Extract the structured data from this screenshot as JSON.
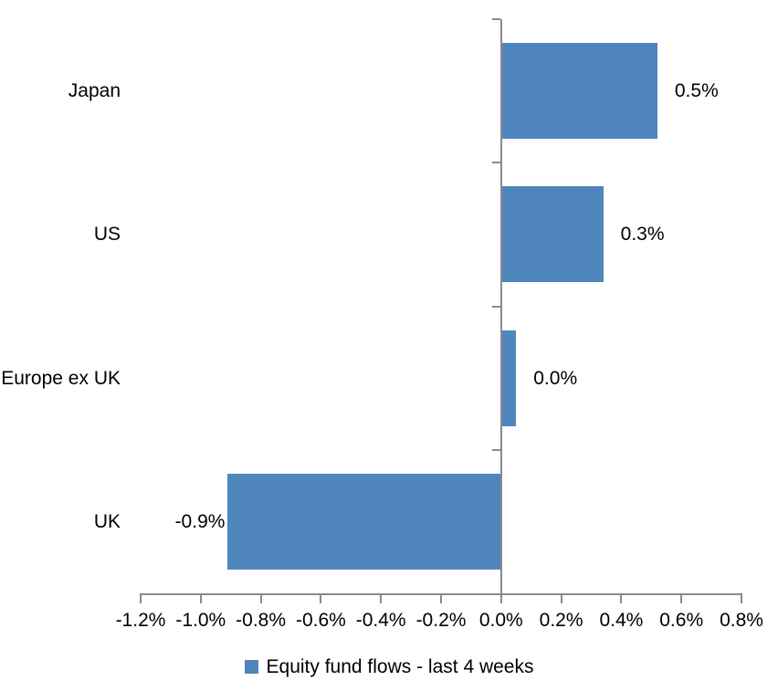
{
  "chart_data": {
    "type": "bar",
    "orientation": "horizontal",
    "title": "",
    "categories": [
      "Japan",
      "US",
      "Europe ex UK",
      "UK"
    ],
    "values": [
      0.5,
      0.3,
      0.0,
      -0.9
    ],
    "values_precise_pct": [
      0.52,
      0.34,
      0.05,
      -0.91
    ],
    "value_labels": [
      "0.5%",
      "0.3%",
      "0.0%",
      "-0.9%"
    ],
    "xlabel": "",
    "ylabel": "",
    "xlim": [
      -1.2,
      0.8
    ],
    "x_tick_step": 0.2,
    "x_tick_labels": [
      "-1.2%",
      "-1.0%",
      "-0.8%",
      "-0.6%",
      "-0.4%",
      "-0.2%",
      "0.0%",
      "0.2%",
      "0.4%",
      "0.6%",
      "0.8%"
    ],
    "grid": false,
    "legend_position": "bottom",
    "legend": [
      "Equity fund flows - last 4 weeks"
    ],
    "bar_color": "#4e86bd",
    "axis_color": "#8a8a8a",
    "text_color": "#000000",
    "background_color": "#ffffff"
  }
}
